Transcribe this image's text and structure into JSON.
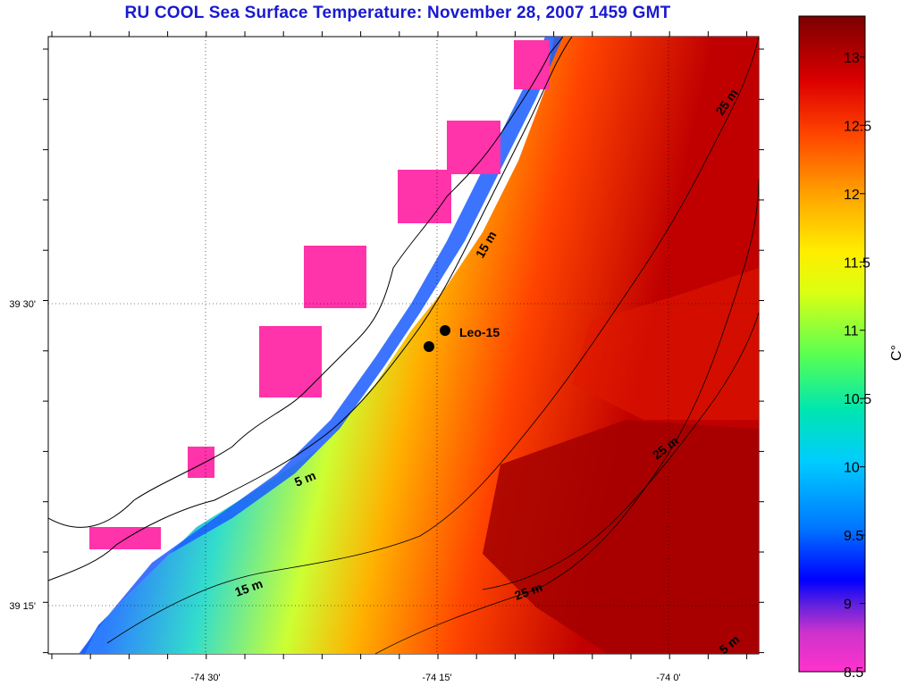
{
  "title": "RU COOL  Sea Surface Temperature:  November 28, 2007 1459 GMT",
  "map": {
    "x_ticks": [
      {
        "label": "-74 30'",
        "lon": -74.5
      },
      {
        "label": "-74 15'",
        "lon": -74.25
      },
      {
        "label": "-74 0'",
        "lon": -74.0
      }
    ],
    "y_ticks": [
      {
        "label": "39 30'",
        "lat": 39.5
      },
      {
        "label": "39 15'",
        "lat": 39.25
      }
    ],
    "contour_labels": [
      "25 m",
      "15 m",
      "5 m",
      "25 m",
      "15 m",
      "25 m",
      "5 m"
    ],
    "station": {
      "label": "Leo-15"
    }
  },
  "colorbar": {
    "unit": "C°",
    "min": 8.5,
    "max": 13.3,
    "ticks": [
      "13",
      "12.5",
      "12",
      "11.5",
      "11",
      "10.5",
      "10",
      "9.5",
      "9",
      "8.5"
    ],
    "colors": [
      "#ff33bb",
      "#cc33cc",
      "#7722dd",
      "#0000ff",
      "#0066ff",
      "#00bbff",
      "#00e6cc",
      "#33ff66",
      "#aaff22",
      "#ffff00",
      "#ffbb00",
      "#ff7700",
      "#ff2200",
      "#cc0000",
      "#8b0000"
    ]
  }
}
